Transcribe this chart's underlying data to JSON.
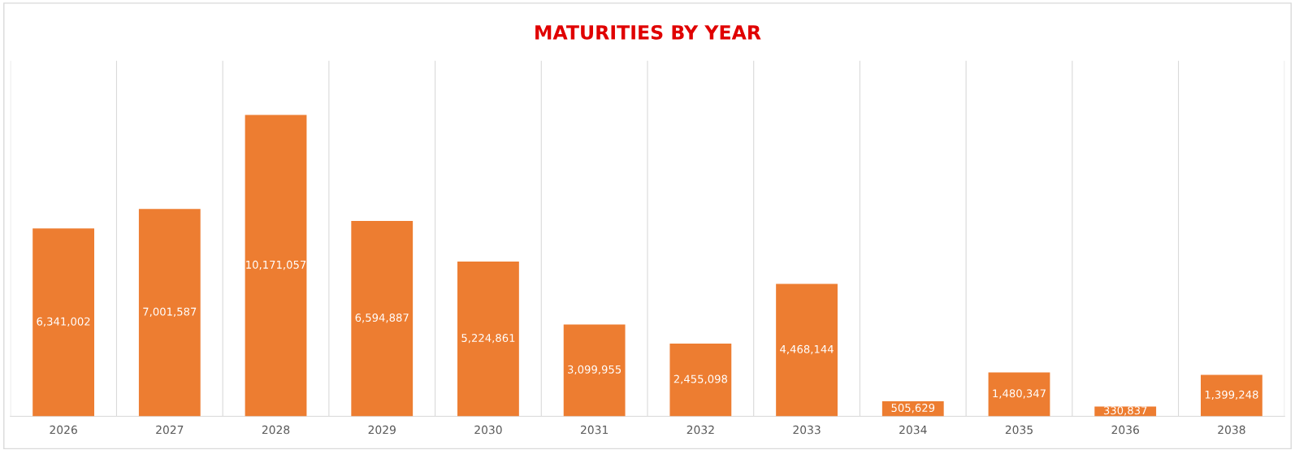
{
  "chart_data": {
    "type": "bar",
    "title": "MATURITIES BY YEAR",
    "categories": [
      "2026",
      "2027",
      "2028",
      "2029",
      "2030",
      "2031",
      "2032",
      "2033",
      "2034",
      "2035",
      "2036",
      "2038"
    ],
    "values": [
      6341002,
      7001587,
      10171057,
      6594887,
      5224861,
      3099955,
      2455098,
      4468144,
      505629,
      1480347,
      330837,
      1399248
    ],
    "value_labels": [
      "6,341,002",
      "7,001,587",
      "10,171,057",
      "6,594,887",
      "5,224,861",
      "3,099,955",
      "2,455,098",
      "4,468,144",
      "505,629",
      "1,480,347",
      "330,837",
      "1,399,248"
    ],
    "color": "#ed7d31",
    "grid": "x",
    "tick_labels": "x"
  }
}
